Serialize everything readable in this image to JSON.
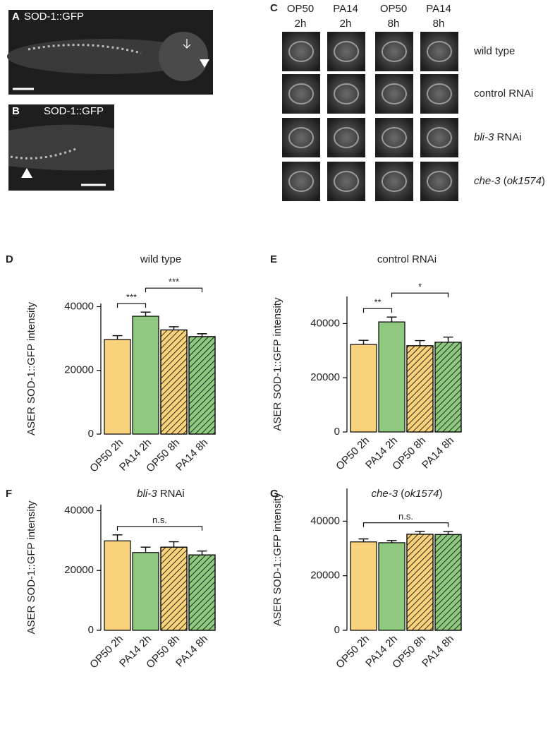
{
  "image_panels": [
    {
      "letter": "A",
      "label": "SOD-1::GFP"
    },
    {
      "letter": "B",
      "label": "SOD-1::GFP"
    }
  ],
  "grid_panel": {
    "letter": "C",
    "columns": [
      [
        "OP50",
        "2h"
      ],
      [
        "PA14",
        "2h"
      ],
      [
        "OP50",
        "8h"
      ],
      [
        "PA14",
        "8h"
      ]
    ],
    "rows": [
      [
        {
          "text": "wild type"
        }
      ],
      [
        {
          "text": "control RNAi"
        }
      ],
      [
        {
          "text": "bli-3",
          "italic": true
        },
        {
          "text": " RNAi"
        }
      ],
      [
        {
          "text": "che-3",
          "italic": true
        },
        {
          "text": " ("
        },
        {
          "text": "ok1574",
          "italic": true
        },
        {
          "text": ")"
        }
      ]
    ]
  },
  "chart_data": [
    {
      "type": "bar",
      "letter": "D",
      "title": [
        {
          "text": "wild type"
        }
      ],
      "ylabel": "ASER SOD-1::GFP intensity",
      "categories": [
        "OP50 2h",
        "PA14 2h",
        "OP50 8h",
        "PA14 8h"
      ],
      "values": [
        29700,
        37000,
        32700,
        30600
      ],
      "errors": [
        1200,
        1300,
        1000,
        900
      ],
      "colors": [
        "#f9d27c",
        "#8ec97f",
        "#f9d27c",
        "#8ec97f"
      ],
      "hatched": [
        false,
        false,
        true,
        true
      ],
      "ylim": [
        0,
        41000
      ],
      "yticks": [
        0,
        20000,
        40000
      ],
      "annotations": [
        {
          "text": "***",
          "from": 0,
          "to": 1
        },
        {
          "text": "***",
          "from": 1,
          "to": 3
        }
      ]
    },
    {
      "type": "bar",
      "letter": "E",
      "title": [
        {
          "text": "control RNAi"
        }
      ],
      "ylabel": "ASER SOD-1::GFP intensity",
      "categories": [
        "OP50 2h",
        "PA14 2h",
        "OP50 8h",
        "PA14 8h"
      ],
      "values": [
        32300,
        40600,
        31800,
        33100
      ],
      "errors": [
        1500,
        1800,
        1900,
        1900
      ],
      "colors": [
        "#f9d27c",
        "#8ec97f",
        "#f9d27c",
        "#8ec97f"
      ],
      "hatched": [
        false,
        false,
        true,
        true
      ],
      "ylim": [
        0,
        50000
      ],
      "yticks": [
        0,
        20000,
        40000
      ],
      "annotations": [
        {
          "text": "**",
          "from": 0,
          "to": 1
        },
        {
          "text": "*",
          "from": 1,
          "to": 3
        }
      ]
    },
    {
      "type": "bar",
      "letter": "F",
      "title": [
        {
          "text": "bli-3",
          "italic": true
        },
        {
          "text": " RNAi"
        }
      ],
      "ylabel": "ASER SOD-1::GFP intensity",
      "categories": [
        "OP50 2h",
        "PA14 2h",
        "OP50 8h",
        "PA14 8h"
      ],
      "values": [
        29900,
        26000,
        27800,
        25200
      ],
      "errors": [
        2000,
        1800,
        1800,
        1300
      ],
      "colors": [
        "#f9d27c",
        "#8ec97f",
        "#f9d27c",
        "#8ec97f"
      ],
      "hatched": [
        false,
        false,
        true,
        true
      ],
      "ylim": [
        0,
        42000
      ],
      "yticks": [
        0,
        20000,
        40000
      ],
      "annotations": [
        {
          "text": "n.s.",
          "from": 0,
          "to": 3
        }
      ]
    },
    {
      "type": "bar",
      "letter": "G",
      "title": [
        {
          "text": "che-3",
          "italic": true
        },
        {
          "text": " ("
        },
        {
          "text": "ok1574",
          "italic": true
        },
        {
          "text": ")"
        }
      ],
      "ylabel": "ASER SOD-1::GFP intensity",
      "categories": [
        "OP50 2h",
        "PA14 2h",
        "OP50 8h",
        "PA14 8h"
      ],
      "values": [
        32400,
        32100,
        35200,
        35100
      ],
      "errors": [
        1100,
        800,
        1100,
        1100
      ],
      "colors": [
        "#f9d27c",
        "#8ec97f",
        "#f9d27c",
        "#8ec97f"
      ],
      "hatched": [
        false,
        false,
        true,
        true
      ],
      "ylim": [
        0,
        52000
      ],
      "yticks": [
        0,
        20000,
        40000
      ],
      "annotations": [
        {
          "text": "n.s.",
          "from": 0,
          "to": 3
        }
      ]
    }
  ]
}
